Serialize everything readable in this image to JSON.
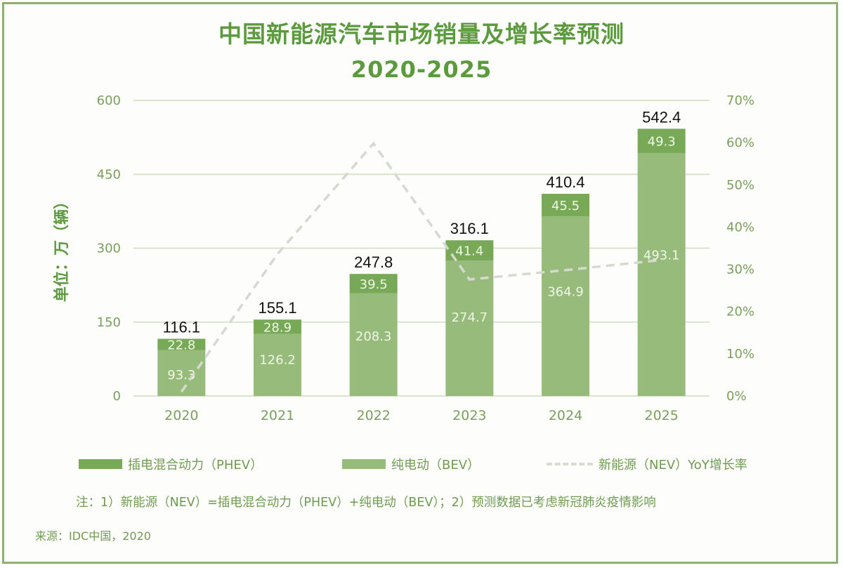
{
  "colors": {
    "phev": "#77a957",
    "bev": "#97bb7b",
    "yoy_line": "#d6d9cf",
    "grid": "#d9e3cc",
    "text_green": "#6f9b4f",
    "title_green": "#5c9a3e",
    "frame": "#8db26f"
  },
  "chart_data": {
    "type": "bar",
    "stacked": true,
    "title": "中国新能源汽车市场销量及增长率预测",
    "subtitle": "2020-2025",
    "ylabel": "单位：万（辆）",
    "xlabel": "",
    "categories": [
      "2020",
      "2021",
      "2022",
      "2023",
      "2024",
      "2025"
    ],
    "series": [
      {
        "name": "纯电动（BEV）",
        "key": "bev",
        "values": [
          93.3,
          126.2,
          208.3,
          274.7,
          364.9,
          493.1
        ]
      },
      {
        "name": "插电混合动力（PHEV）",
        "key": "phev",
        "values": [
          22.8,
          28.9,
          39.5,
          41.4,
          45.5,
          49.3
        ]
      }
    ],
    "totals": [
      116.1,
      155.1,
      247.8,
      316.1,
      410.4,
      542.4
    ],
    "total_labels": [
      "116.1",
      "155.1",
      "247.8",
      "316.1",
      "410.4",
      "542.4"
    ],
    "bev_labels": [
      "93.3",
      "126.2",
      "208.3",
      "274.7",
      "364.9",
      "493.1"
    ],
    "phev_labels": [
      "22.8",
      "28.9",
      "39.5",
      "41.4",
      "45.5",
      "49.3"
    ],
    "line_series": {
      "name": "新能源（NEV）YoY增长率",
      "axis": "right",
      "values": [
        1.0,
        33.6,
        59.8,
        27.6,
        29.8,
        32.2
      ]
    },
    "ylim": [
      0,
      600
    ],
    "y_ticks": [
      "0",
      "150",
      "300",
      "450",
      "600"
    ],
    "y_tick_values": [
      0,
      150,
      300,
      450,
      600
    ],
    "y2lim": [
      0,
      70
    ],
    "y2_ticks": [
      "0%",
      "10%",
      "20%",
      "30%",
      "40%",
      "50%",
      "60%",
      "70%"
    ],
    "y2_tick_values": [
      0,
      10,
      20,
      30,
      40,
      50,
      60,
      70
    ],
    "grid": true,
    "legend_position": "bottom"
  },
  "legend": {
    "phev": "插电混合动力（PHEV）",
    "bev": "纯电动（BEV）",
    "yoy": "新能源（NEV）YoY增长率"
  },
  "note": "注：1）新能源（NEV）=插电混合动力（PHEV）+纯电动（BEV）；2）预测数据已考虑新冠肺炎疫情影响",
  "source": "来源：IDC中国，2020"
}
